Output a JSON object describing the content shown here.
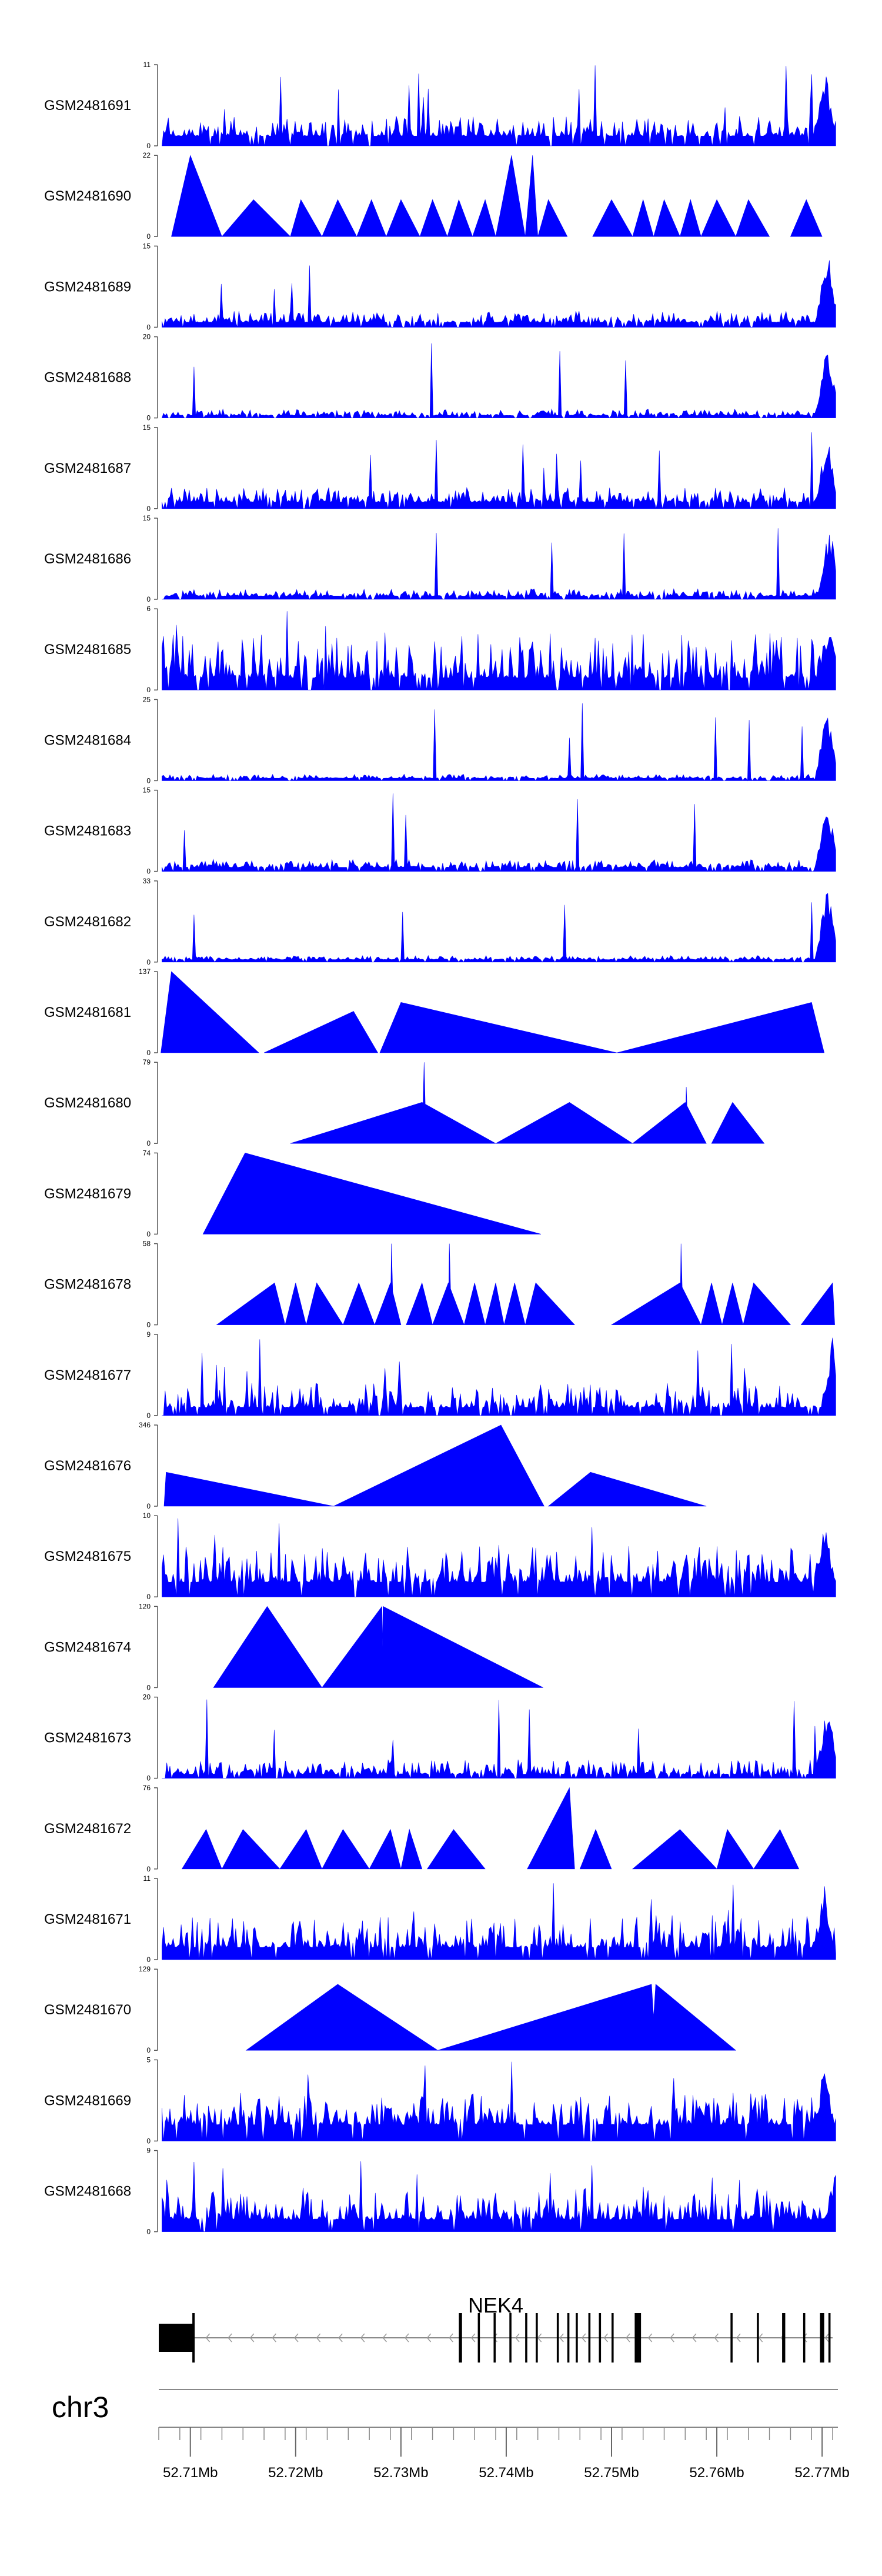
{
  "chart_data": {
    "type": "area",
    "fill_color": "#0000ff",
    "x_unit": "Mb",
    "xlim": [
      52.707,
      52.7715
    ],
    "x_ticks": [
      52.71,
      52.72,
      52.73,
      52.74,
      52.75,
      52.76,
      52.77
    ],
    "x_tick_labels": [
      "52.71Mb",
      "52.72Mb",
      "52.73Mb",
      "52.74Mb",
      "52.75Mb",
      "52.76Mb",
      "52.77Mb"
    ],
    "chromosome": "chr3",
    "gene": {
      "name": "NEK4",
      "start": 52.707,
      "end": 52.771,
      "strand": "-",
      "exons": [
        [
          52.707,
          52.7103
        ],
        [
          52.7355,
          52.7358
        ],
        [
          52.7373,
          52.7375
        ],
        [
          52.7388,
          52.739
        ],
        [
          52.7403,
          52.7405
        ],
        [
          52.7418,
          52.742
        ],
        [
          52.7428,
          52.743
        ],
        [
          52.7448,
          52.745
        ],
        [
          52.7458,
          52.746
        ],
        [
          52.7466,
          52.7468
        ],
        [
          52.7478,
          52.748
        ],
        [
          52.7488,
          52.749
        ],
        [
          52.75,
          52.7502
        ],
        [
          52.7522,
          52.7528
        ],
        [
          52.7613,
          52.7615
        ],
        [
          52.7638,
          52.764
        ],
        [
          52.7662,
          52.7665
        ],
        [
          52.7682,
          52.7684
        ],
        [
          52.7698,
          52.7702
        ],
        [
          52.7706,
          52.7708
        ]
      ]
    },
    "tracks": [
      {
        "name": "GSM2481691",
        "ymax": 11,
        "style": "dense",
        "density": 0.9,
        "base": 0.12,
        "noise": 0.25,
        "hot": 52.7703
      },
      {
        "name": "GSM2481690",
        "ymax": 22,
        "style": "peaks",
        "peaks": [
          [
            52.7082,
            52.71,
            52.713,
            22
          ],
          [
            52.713,
            52.716,
            52.7195,
            10
          ],
          [
            52.7195,
            52.7205,
            52.7225,
            10
          ],
          [
            52.7225,
            52.724,
            52.7258,
            10
          ],
          [
            52.7258,
            52.7272,
            52.7286,
            10
          ],
          [
            52.7286,
            52.73,
            52.7318,
            10
          ],
          [
            52.7318,
            52.733,
            52.7344,
            10
          ],
          [
            52.7344,
            52.7355,
            52.7368,
            10
          ],
          [
            52.7368,
            52.738,
            52.739,
            10
          ],
          [
            52.739,
            52.7405,
            52.7418,
            22
          ],
          [
            52.7418,
            52.7425,
            52.743,
            22
          ],
          [
            52.743,
            52.744,
            52.7458,
            10
          ],
          [
            52.7482,
            52.75,
            52.752,
            10
          ],
          [
            52.752,
            52.753,
            52.754,
            10
          ],
          [
            52.754,
            52.755,
            52.7565,
            10
          ],
          [
            52.7565,
            52.7575,
            52.7585,
            10
          ],
          [
            52.7585,
            52.76,
            52.7618,
            10
          ],
          [
            52.7618,
            52.763,
            52.765,
            10
          ],
          [
            52.767,
            52.7685,
            52.77,
            10
          ]
        ]
      },
      {
        "name": "GSM2481689",
        "ymax": 15,
        "style": "dense",
        "density": 0.9,
        "base": 0.06,
        "noise": 0.14,
        "hot": 52.7705
      },
      {
        "name": "GSM2481688",
        "ymax": 20,
        "style": "dense",
        "density": 0.9,
        "base": 0.03,
        "noise": 0.08,
        "hot": 52.7705
      },
      {
        "name": "GSM2481687",
        "ymax": 15,
        "style": "dense",
        "density": 0.9,
        "base": 0.08,
        "noise": 0.18,
        "hot": 52.7705
      },
      {
        "name": "GSM2481686",
        "ymax": 15,
        "style": "dense",
        "density": 0.9,
        "base": 0.04,
        "noise": 0.09,
        "hot": 52.7707
      },
      {
        "name": "GSM2481685",
        "ymax": 6,
        "style": "dense",
        "density": 0.9,
        "base": 0.15,
        "noise": 0.55,
        "hot": 52.7707
      },
      {
        "name": "GSM2481684",
        "ymax": 25,
        "style": "dense",
        "density": 0.9,
        "base": 0.03,
        "noise": 0.05,
        "hot": 52.7705
      },
      {
        "name": "GSM2481683",
        "ymax": 15,
        "style": "dense",
        "density": 0.9,
        "base": 0.05,
        "noise": 0.1,
        "hot": 52.7705
      },
      {
        "name": "GSM2481682",
        "ymax": 33,
        "style": "dense",
        "density": 0.9,
        "base": 0.03,
        "noise": 0.05,
        "hot": 52.7705
      },
      {
        "name": "GSM2481681",
        "ymax": 137,
        "style": "peaks",
        "peaks": [
          [
            52.7072,
            52.7082,
            52.7165,
            137
          ],
          [
            52.717,
            52.7255,
            52.7278,
            70
          ],
          [
            52.728,
            52.73,
            52.7505,
            85
          ],
          [
            52.7505,
            52.769,
            52.7702,
            85
          ]
        ]
      },
      {
        "name": "GSM2481680",
        "ymax": 79,
        "style": "peaks",
        "peaks": [
          [
            52.7195,
            52.732,
            52.739,
            40
          ],
          [
            52.732,
            52.7322,
            52.7324,
            79
          ],
          [
            52.739,
            52.746,
            52.752,
            40
          ],
          [
            52.752,
            52.757,
            52.759,
            40
          ],
          [
            52.757,
            52.7571,
            52.7573,
            55
          ],
          [
            52.7595,
            52.7615,
            52.7645,
            40
          ]
        ]
      },
      {
        "name": "GSM2481679",
        "ymax": 74,
        "style": "peaks",
        "peaks": [
          [
            52.7112,
            52.7152,
            52.7433,
            74
          ]
        ]
      },
      {
        "name": "GSM2481678",
        "ymax": 58,
        "style": "peaks",
        "peaks": [
          [
            52.7125,
            52.718,
            52.719,
            30
          ],
          [
            52.719,
            52.72,
            52.721,
            30
          ],
          [
            52.721,
            52.722,
            52.7245,
            30
          ],
          [
            52.7245,
            52.726,
            52.7275,
            30
          ],
          [
            52.7275,
            52.729,
            52.73,
            30
          ],
          [
            52.729,
            52.7291,
            52.7293,
            58
          ],
          [
            52.7305,
            52.732,
            52.733,
            30
          ],
          [
            52.733,
            52.7345,
            52.736,
            30
          ],
          [
            52.7345,
            52.7346,
            52.7348,
            58
          ],
          [
            52.736,
            52.737,
            52.738,
            30
          ],
          [
            52.738,
            52.739,
            52.7398,
            30
          ],
          [
            52.7398,
            52.7408,
            52.7418,
            30
          ],
          [
            52.7418,
            52.7428,
            52.7465,
            30
          ],
          [
            52.75,
            52.7565,
            52.7585,
            30
          ],
          [
            52.7565,
            52.7566,
            52.7568,
            58
          ],
          [
            52.7585,
            52.7595,
            52.7605,
            30
          ],
          [
            52.7605,
            52.7615,
            52.7625,
            30
          ],
          [
            52.7625,
            52.7635,
            52.767,
            30
          ],
          [
            52.768,
            52.771,
            52.7712,
            30
          ]
        ]
      },
      {
        "name": "GSM2481677",
        "ymax": 9,
        "style": "dense",
        "density": 0.9,
        "base": 0.1,
        "noise": 0.3,
        "hot": 52.771
      },
      {
        "name": "GSM2481676",
        "ymax": 346,
        "style": "peaks",
        "peaks": [
          [
            52.7075,
            52.7077,
            52.7236,
            145
          ],
          [
            52.7236,
            52.7395,
            52.7436,
            346
          ],
          [
            52.744,
            52.748,
            52.759,
            145
          ]
        ]
      },
      {
        "name": "GSM2481675",
        "ymax": 10,
        "style": "dense",
        "density": 0.95,
        "base": 0.18,
        "noise": 0.45,
        "hot": 52.7703
      },
      {
        "name": "GSM2481674",
        "ymax": 120,
        "style": "peaks",
        "peaks": [
          [
            52.7122,
            52.7173,
            52.7225,
            120
          ],
          [
            52.7225,
            52.7282,
            52.7283,
            120
          ],
          [
            52.7282,
            52.7283,
            52.7435,
            120
          ]
        ]
      },
      {
        "name": "GSM2481673",
        "ymax": 20,
        "style": "dense",
        "density": 0.85,
        "base": 0.05,
        "noise": 0.18,
        "hot": 52.7705
      },
      {
        "name": "GSM2481672",
        "ymax": 76,
        "style": "peaks",
        "peaks": [
          [
            52.7092,
            52.7115,
            52.713,
            37
          ],
          [
            52.713,
            52.715,
            52.7185,
            37
          ],
          [
            52.7185,
            52.721,
            52.7225,
            37
          ],
          [
            52.7225,
            52.7245,
            52.727,
            37
          ],
          [
            52.727,
            52.729,
            52.73,
            37
          ],
          [
            52.73,
            52.7308,
            52.732,
            37
          ],
          [
            52.7325,
            52.735,
            52.738,
            37
          ],
          [
            52.742,
            52.746,
            52.7465,
            76
          ],
          [
            52.747,
            52.7485,
            52.75,
            37
          ],
          [
            52.752,
            52.7565,
            52.76,
            37
          ],
          [
            52.76,
            52.761,
            52.7635,
            37
          ],
          [
            52.7635,
            52.766,
            52.7678,
            37
          ]
        ]
      },
      {
        "name": "GSM2481671",
        "ymax": 11,
        "style": "dense",
        "density": 0.9,
        "base": 0.15,
        "noise": 0.4,
        "hot": 52.7702
      },
      {
        "name": "GSM2481670",
        "ymax": 129,
        "style": "peaks",
        "peaks": [
          [
            52.7153,
            52.724,
            52.7335,
            105
          ],
          [
            52.7335,
            52.7538,
            52.7542,
            105
          ],
          [
            52.7538,
            52.7542,
            52.7618,
            105
          ]
        ]
      },
      {
        "name": "GSM2481669",
        "ymax": 5,
        "style": "dense",
        "density": 0.95,
        "base": 0.2,
        "noise": 0.4,
        "hot": 52.7702
      },
      {
        "name": "GSM2481668",
        "ymax": 9,
        "style": "dense",
        "density": 0.95,
        "base": 0.15,
        "noise": 0.4,
        "hot": 52.7714
      }
    ]
  }
}
